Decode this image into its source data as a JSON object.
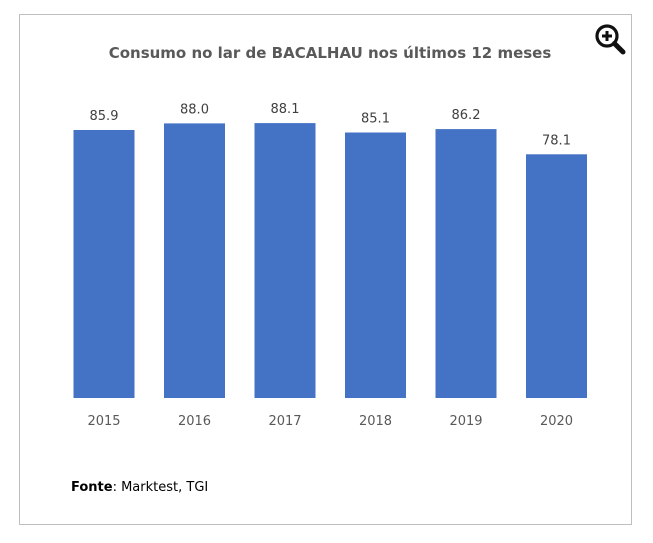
{
  "chart_data": {
    "type": "bar",
    "title": "Consumo no lar de BACALHAU nos últimos 12 meses",
    "categories": [
      "2015",
      "2016",
      "2017",
      "2018",
      "2019",
      "2020"
    ],
    "values": [
      85.9,
      88.0,
      88.1,
      85.1,
      86.2,
      78.1
    ],
    "value_labels": [
      "85.9",
      "88.0",
      "88.1",
      "85.1",
      "86.2",
      "78.1"
    ],
    "xlabel": "",
    "ylabel": "",
    "ylim": [
      0,
      100
    ],
    "grid": false,
    "legend": "none",
    "bar_color": "#4472C4"
  },
  "source": {
    "label": "Fonte",
    "text": ": Marktest, TGI"
  },
  "zoom_icon": "zoom-in-icon"
}
